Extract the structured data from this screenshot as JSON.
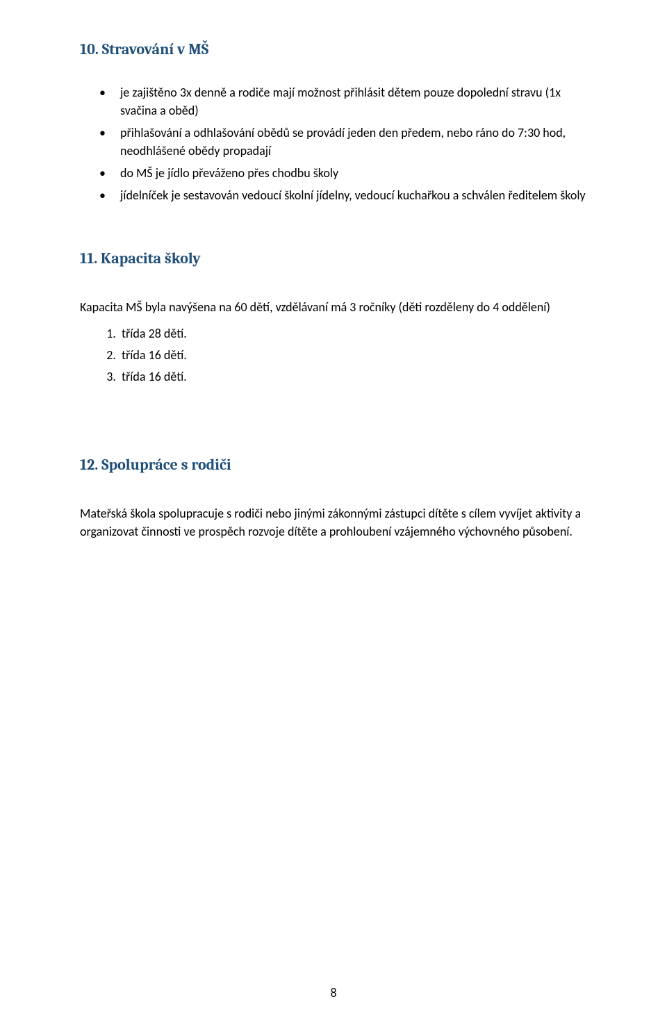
{
  "colors": {
    "heading": "#1f4e79",
    "body_text": "#000000",
    "background": "#ffffff"
  },
  "typography": {
    "heading_family": "Cambria",
    "body_family": "Calibri",
    "heading_size_pt": 16,
    "body_size_pt": 13
  },
  "section10": {
    "title": "10. Stravování v MŠ",
    "bullets": [
      "je zajištěno 3x denně a rodiče mají možnost přihlásit dětem pouze dopolední stravu (1x svačina a oběd)",
      "přihlašování a odhlašování obědů se provádí jeden den předem, nebo ráno do 7:30 hod, neodhlášené obědy propadají",
      "do MŠ je jídlo převáženo přes chodbu školy",
      "jídelníček je sestavován vedoucí školní jídelny, vedoucí kuchařkou a schválen ředitelem školy"
    ]
  },
  "section11": {
    "title": "11. Kapacita školy",
    "intro": "Kapacita MŠ byla navýšena na 60 dětí, vzdělávaní má 3 ročníky (děti rozděleny do 4 oddělení)",
    "items": [
      "třída 28 dětí.",
      "třída 16 dětí.",
      "třída 16 dětí."
    ]
  },
  "section12": {
    "title": "12. Spolupráce s rodiči",
    "paragraph": "Mateřská škola spolupracuje s rodiči nebo jinými zákonnými zástupci dítěte s cílem vyvíjet aktivity a organizovat činnosti ve prospěch rozvoje dítěte a prohloubení vzájemného výchovného působení."
  },
  "page_number": "8"
}
